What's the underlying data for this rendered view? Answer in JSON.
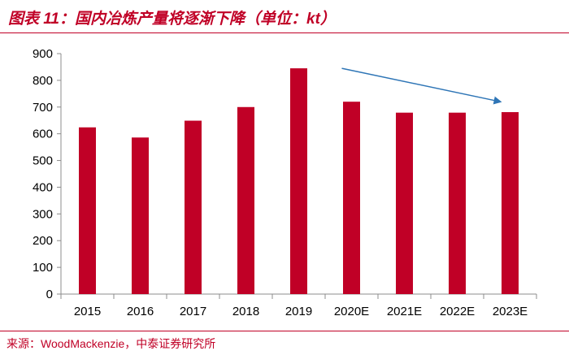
{
  "header": {
    "title": "图表 11：国内冶炼产量将逐渐下降（单位：kt）"
  },
  "footer": {
    "source": "来源：WoodMackenzie，中泰证券研究所"
  },
  "colors": {
    "accent": "#c00026",
    "bar": "#c00026",
    "arrow": "#2e75b6"
  },
  "chart_data": {
    "type": "bar",
    "categories": [
      "2015",
      "2016",
      "2017",
      "2018",
      "2019",
      "2020E",
      "2021E",
      "2022E",
      "2023E"
    ],
    "values": [
      624,
      586,
      649,
      700,
      845,
      720,
      679,
      679,
      681
    ],
    "ylim": [
      0,
      900
    ],
    "yticks": [
      0,
      100,
      200,
      300,
      400,
      500,
      600,
      700,
      800,
      900
    ],
    "grid": false,
    "legend": "none",
    "annotations": [
      {
        "type": "trend-arrow",
        "from": {
          "x": "2020E",
          "y": 845
        },
        "to": {
          "x": "2023E",
          "y": 720
        }
      }
    ]
  }
}
